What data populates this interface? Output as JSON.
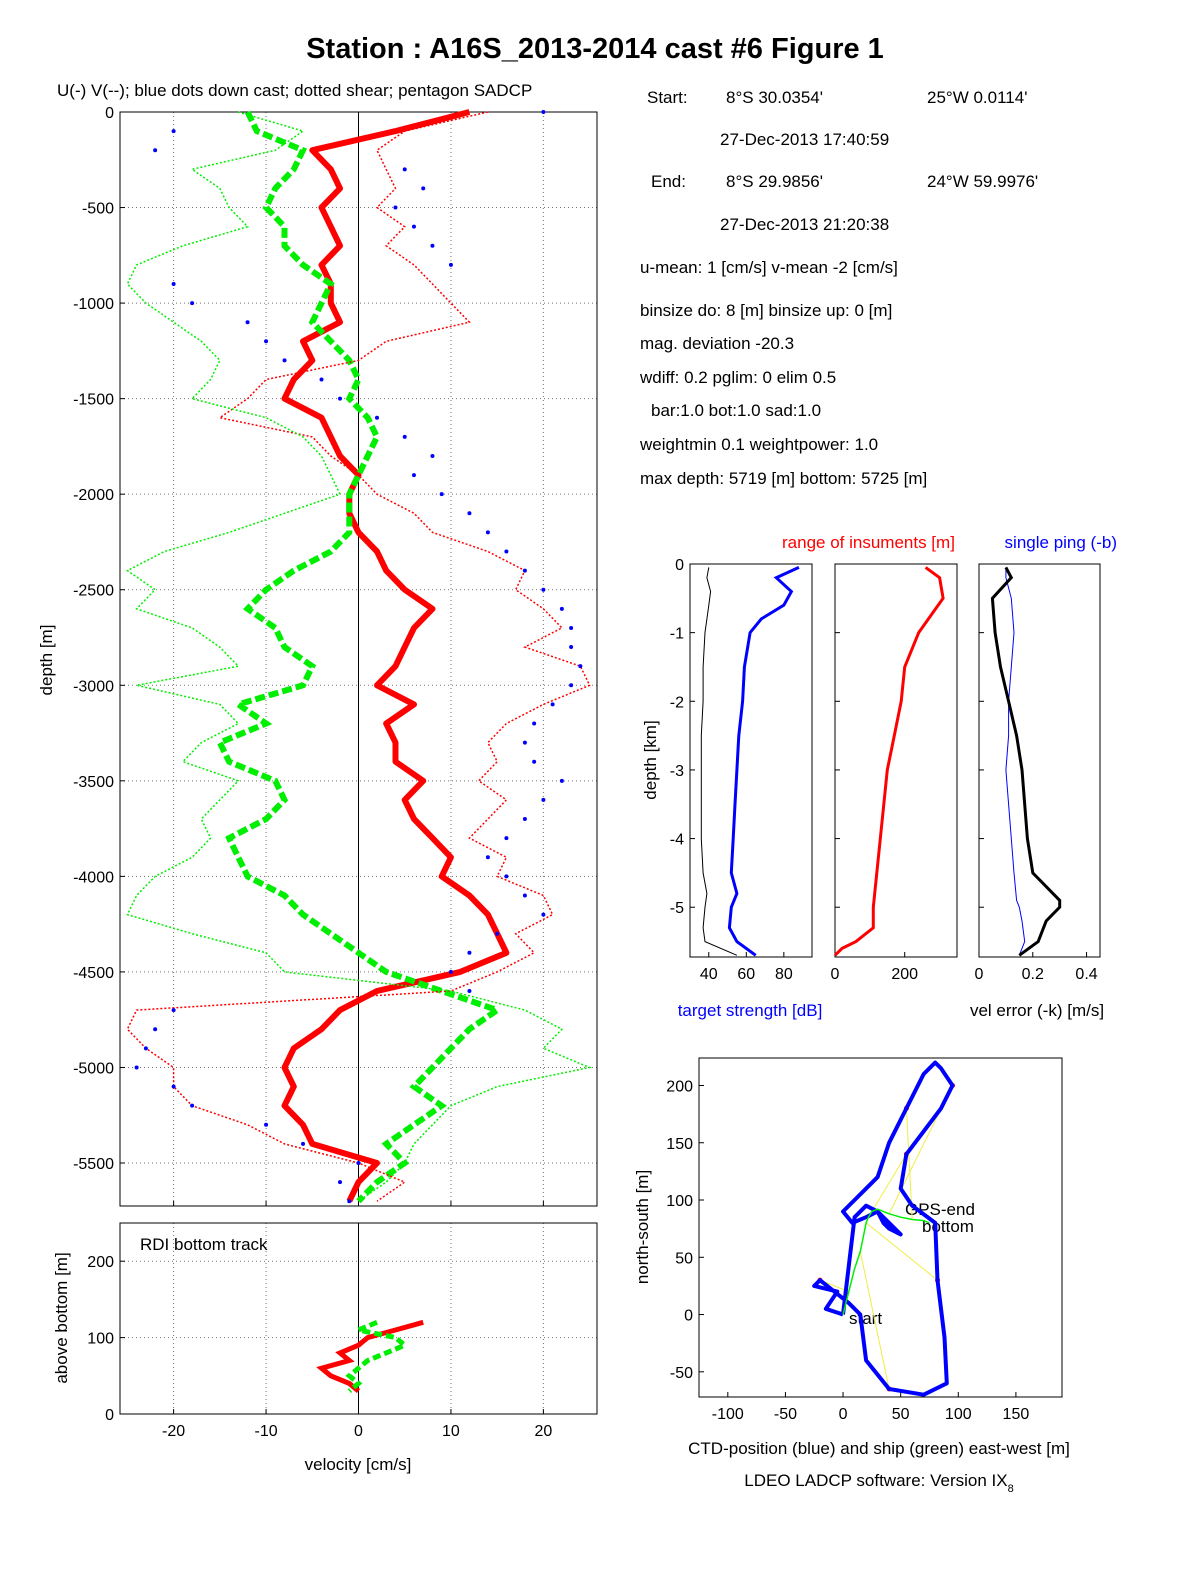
{
  "title": "Station : A16S_2013-2014 cast #6  Figure 1",
  "main_subtitle": "U(-) V(--); blue dots down cast; dotted shear; pentagon SADCP",
  "info": {
    "start_label": "Start:",
    "start_lat": "8°S 30.0354'",
    "start_lon": "25°W  0.0114'",
    "start_time": "27-Dec-2013 17:40:59",
    "end_label": "End:",
    "end_lat": "8°S 29.9856'",
    "end_lon": "24°W 59.9976'",
    "end_time": "27-Dec-2013 21:20:38",
    "means": "u-mean:   1 [cm/s]    v-mean  -2 [cm/s]",
    "binsize": "binsize do:  8 [m]  binsize up:   0 [m]",
    "magdev": "mag. deviation -20.3",
    "wdiff": "wdiff: 0.2  pglim: 0  elim 0.5",
    "bar": "bar:1.0 bot:1.0 sad:1.0",
    "weight": "weightmin 0.1  weightpower: 1.0",
    "depth": "max depth: 5719 [m]   bottom: 5725 [m]"
  },
  "colors": {
    "red": "#ff0000",
    "green": "#00ee00",
    "blue": "#0000ff",
    "black": "#000000",
    "yellow": "#eeee44"
  },
  "chart_data": [
    {
      "type": "line",
      "title": "U(-) V(--); blue dots down cast; dotted shear; pentagon SADCP",
      "xlabel": "",
      "ylabel": "depth [m]",
      "xlim": [
        -25.8,
        25.8
      ],
      "ylim": [
        -5725,
        0
      ],
      "xticks": [
        -20,
        -10,
        0,
        10,
        20
      ],
      "yticks": [
        0,
        -500,
        -1000,
        -1500,
        -2000,
        -2500,
        -3000,
        -3500,
        -4000,
        -4500,
        -5000,
        -5500
      ],
      "ytick_labels": [
        "0",
        "-500",
        "-1000",
        "-1500",
        "-2000",
        "-2500",
        "-3000",
        "-3500",
        "-4000",
        "-4500",
        "-5000",
        "-5500"
      ],
      "grid": true,
      "depth": [
        0,
        100,
        200,
        300,
        400,
        500,
        600,
        700,
        800,
        900,
        1000,
        1100,
        1200,
        1300,
        1400,
        1500,
        1600,
        1700,
        1800,
        1900,
        2000,
        2100,
        2200,
        2300,
        2400,
        2500,
        2600,
        2700,
        2800,
        2900,
        3000,
        3100,
        3200,
        3300,
        3400,
        3500,
        3600,
        3700,
        3800,
        3900,
        4000,
        4100,
        4200,
        4300,
        4400,
        4500,
        4600,
        4700,
        4800,
        4900,
        5000,
        5100,
        5200,
        5300,
        5400,
        5500,
        5600,
        5700
      ],
      "series": [
        {
          "name": "U",
          "color": "red",
          "values": [
            12,
            4,
            -5,
            -3,
            -2,
            -4,
            -3,
            -2,
            -4,
            -3,
            -3,
            -2,
            -6,
            -5,
            -7,
            -8,
            -4,
            -3,
            -2,
            0,
            -1,
            -1,
            0,
            2,
            3,
            5,
            8,
            6,
            5,
            4,
            2,
            6,
            3,
            4,
            4,
            7,
            5,
            6,
            8,
            10,
            9,
            12,
            14,
            15,
            16,
            11,
            2,
            -2,
            -4,
            -7,
            -8,
            -7,
            -8,
            -6,
            -5,
            2,
            0,
            -1
          ]
        },
        {
          "name": "V",
          "color": "green",
          "values": [
            -12,
            -11,
            -6,
            -7,
            -9,
            -10,
            -8,
            -8,
            -6,
            -3,
            -4,
            -5,
            -3,
            -1,
            0,
            -1,
            1,
            2,
            1,
            0,
            -1,
            -1,
            -1,
            -3,
            -7,
            -10,
            -12,
            -9,
            -8,
            -5,
            -6,
            -13,
            -10,
            -15,
            -14,
            -9,
            -8,
            -10,
            -14,
            -13,
            -12,
            -8,
            -6,
            -3,
            0,
            3,
            9,
            15,
            12,
            10,
            8,
            6,
            9,
            6,
            3,
            5,
            2,
            0
          ]
        },
        {
          "name": "U shear",
          "color": "red",
          "values": [
            14,
            5,
            2,
            3,
            4,
            2,
            5,
            3,
            6,
            8,
            10,
            12,
            3,
            0,
            -10,
            -12,
            -15,
            -5,
            -3,
            0,
            2,
            6,
            8,
            14,
            18,
            17,
            20,
            22,
            18,
            24,
            25,
            20,
            16,
            14,
            15,
            13,
            16,
            14,
            12,
            16,
            15,
            20,
            21,
            17,
            19,
            15,
            10,
            -24,
            -25,
            -23,
            -20,
            -20,
            -18,
            -12,
            -8,
            0,
            5,
            2
          ]
        },
        {
          "name": "V shear",
          "color": "green",
          "values": [
            -13,
            -6,
            -9,
            -18,
            -15,
            -14,
            -12,
            -19,
            -24,
            -25,
            -23,
            -20,
            -17,
            -15,
            -16,
            -18,
            -10,
            -6,
            -4,
            -3,
            -2,
            -8,
            -14,
            -21,
            -25,
            -22,
            -24,
            -18,
            -15,
            -13,
            -24,
            -15,
            -13,
            -17,
            -19,
            -13,
            -15,
            -17,
            -16,
            -18,
            -22,
            -24,
            -25,
            -18,
            -10,
            -8,
            10,
            18,
            22,
            20,
            25,
            15,
            10,
            8,
            6,
            5,
            3,
            0
          ]
        },
        {
          "name": "down cast",
          "color": "blue",
          "values": [
            20,
            -20,
            -22,
            5,
            7,
            4,
            6,
            8,
            10,
            -20,
            -18,
            -12,
            -10,
            -8,
            -4,
            -2,
            2,
            5,
            8,
            6,
            9,
            12,
            14,
            16,
            18,
            20,
            22,
            23,
            23,
            24,
            23,
            21,
            19,
            18,
            19,
            22,
            20,
            18,
            16,
            14,
            16,
            18,
            20,
            15,
            12,
            10,
            12,
            -20,
            -22,
            -23,
            -24,
            -20,
            -18,
            -10,
            -6,
            0,
            -2,
            -1
          ]
        }
      ]
    },
    {
      "type": "line",
      "title": "RDI bottom track",
      "xlabel": "velocity [cm/s]",
      "ylabel": "above bottom [m]",
      "xlim": [
        -25.8,
        25.8
      ],
      "ylim": [
        0,
        250
      ],
      "xticks": [
        -20,
        -10,
        0,
        10,
        20
      ],
      "xtick_labels": [
        "-20",
        "-10",
        "0",
        "10",
        "20"
      ],
      "yticks": [
        0,
        100,
        200
      ],
      "ytick_labels": [
        "0",
        "100",
        "200"
      ],
      "grid": true,
      "height": [
        120,
        110,
        100,
        90,
        80,
        70,
        60,
        50,
        40,
        30
      ],
      "series": [
        {
          "name": "U",
          "color": "red",
          "values": [
            7,
            4,
            1,
            0,
            -2,
            -1,
            -4,
            -3,
            -1,
            0
          ]
        },
        {
          "name": "V",
          "color": "green",
          "values": [
            2,
            0,
            4,
            5,
            3,
            1,
            0,
            -1,
            0,
            -1
          ]
        }
      ]
    },
    {
      "type": "line",
      "title": "",
      "xlabel": "target strength [dB]",
      "ylabel": "depth [km]",
      "xlim": [
        30,
        95
      ],
      "ylim": [
        -5.725,
        0
      ],
      "xticks": [
        40,
        60,
        80
      ],
      "xtick_labels": [
        "40",
        "60",
        "80"
      ],
      "yticks": [
        0,
        -1,
        -2,
        -3,
        -4,
        -5
      ],
      "ytick_labels": [
        "0",
        "-1",
        "-2",
        "-3",
        "-4",
        "-5"
      ],
      "depth_km": [
        0.05,
        0.2,
        0.4,
        0.6,
        0.8,
        1.0,
        1.5,
        2.0,
        2.5,
        3.0,
        3.5,
        4.0,
        4.5,
        4.8,
        5.0,
        5.3,
        5.5,
        5.7
      ],
      "series": [
        {
          "name": "target strength",
          "color": "blue",
          "values": [
            88,
            76,
            84,
            80,
            68,
            62,
            59,
            58,
            56,
            55,
            54,
            53,
            52,
            55,
            52,
            51,
            55,
            65
          ]
        },
        {
          "name": "noise",
          "color": "black",
          "values": [
            40,
            39,
            41,
            40,
            39,
            38,
            37,
            37,
            36,
            36,
            36,
            36,
            37,
            39,
            38,
            37,
            38,
            55
          ]
        }
      ]
    },
    {
      "type": "line",
      "title": "range of insuments [m]",
      "xlabel": "",
      "ylabel": "",
      "xlim": [
        0,
        350
      ],
      "ylim": [
        -5.725,
        0
      ],
      "xticks": [
        0,
        200
      ],
      "xtick_labels": [
        "0",
        "200"
      ],
      "yticks": [
        0,
        -1,
        -2,
        -3,
        -4,
        -5
      ],
      "depth_km": [
        0.05,
        0.2,
        0.5,
        1.0,
        1.5,
        2.0,
        2.5,
        3.0,
        3.5,
        4.0,
        4.5,
        5.0,
        5.3,
        5.5,
        5.6,
        5.7
      ],
      "series": [
        {
          "name": "range",
          "color": "red",
          "values": [
            260,
            300,
            310,
            240,
            200,
            190,
            170,
            150,
            140,
            130,
            120,
            110,
            110,
            60,
            20,
            0
          ]
        }
      ]
    },
    {
      "type": "line",
      "title": "single ping (-b)",
      "xlabel": "vel error (-k) [m/s]",
      "ylabel": "",
      "xlim": [
        0,
        0.45
      ],
      "ylim": [
        -5.725,
        0
      ],
      "xticks": [
        0,
        0.2,
        0.4
      ],
      "xtick_labels": [
        "0",
        "0.2",
        "0.4"
      ],
      "yticks": [
        0,
        -1,
        -2,
        -3,
        -4,
        -5
      ],
      "depth_km": [
        0.05,
        0.2,
        0.5,
        1.0,
        1.5,
        2.0,
        2.5,
        3.0,
        3.5,
        4.0,
        4.5,
        4.9,
        5.0,
        5.2,
        5.5,
        5.7
      ],
      "series": [
        {
          "name": "single ping",
          "color": "blue",
          "values": [
            0.1,
            0.1,
            0.12,
            0.13,
            0.12,
            0.11,
            0.11,
            0.1,
            0.11,
            0.12,
            0.13,
            0.14,
            0.15,
            0.16,
            0.17,
            0.15
          ]
        },
        {
          "name": "vel error",
          "color": "black",
          "values": [
            0.1,
            0.12,
            0.05,
            0.06,
            0.08,
            0.11,
            0.14,
            0.16,
            0.17,
            0.18,
            0.2,
            0.3,
            0.3,
            0.25,
            0.22,
            0.15
          ]
        }
      ]
    },
    {
      "type": "line",
      "title": "",
      "xlabel": "CTD-position (blue) and ship (green) east-west [m]",
      "ylabel": "north-south [m]",
      "xlim": [
        -125,
        190
      ],
      "ylim": [
        -72,
        224
      ],
      "xticks": [
        -100,
        -50,
        0,
        50,
        100,
        150
      ],
      "xtick_labels": [
        "-100",
        "-50",
        "0",
        "50",
        "100",
        "150"
      ],
      "yticks": [
        200,
        150,
        100,
        50,
        0,
        -50
      ],
      "ytick_labels": [
        "200",
        "150",
        "100",
        "50",
        "0",
        "-50"
      ],
      "annotations": [
        "GPS-end",
        "bottom",
        "start"
      ],
      "series": [
        {
          "name": "CTD-position",
          "color": "blue",
          "x": [
            0,
            -15,
            -5,
            -25,
            -20,
            5,
            15,
            20,
            40,
            70,
            90,
            88,
            82,
            80,
            60,
            50,
            55,
            85,
            95,
            85,
            80,
            70,
            55,
            40,
            30,
            20,
            10,
            0,
            8,
            20,
            30,
            35,
            40,
            50,
            40,
            30,
            20,
            10,
            0
          ],
          "y": [
            0,
            5,
            20,
            25,
            30,
            10,
            0,
            -40,
            -65,
            -70,
            -60,
            -20,
            30,
            80,
            95,
            110,
            140,
            180,
            200,
            215,
            220,
            210,
            180,
            150,
            120,
            110,
            100,
            90,
            80,
            85,
            90,
            80,
            75,
            70,
            80,
            90,
            95,
            85,
            0
          ]
        },
        {
          "name": "ship",
          "color": "green",
          "x": [
            0,
            5,
            10,
            15,
            18,
            20,
            22,
            25,
            30,
            40,
            50,
            60,
            70,
            75
          ],
          "y": [
            0,
            20,
            40,
            55,
            70,
            80,
            85,
            90,
            92,
            88,
            85,
            83,
            82,
            80
          ]
        }
      ]
    }
  ],
  "software": "LDEO LADCP software: Version IX",
  "software_sub": "8"
}
